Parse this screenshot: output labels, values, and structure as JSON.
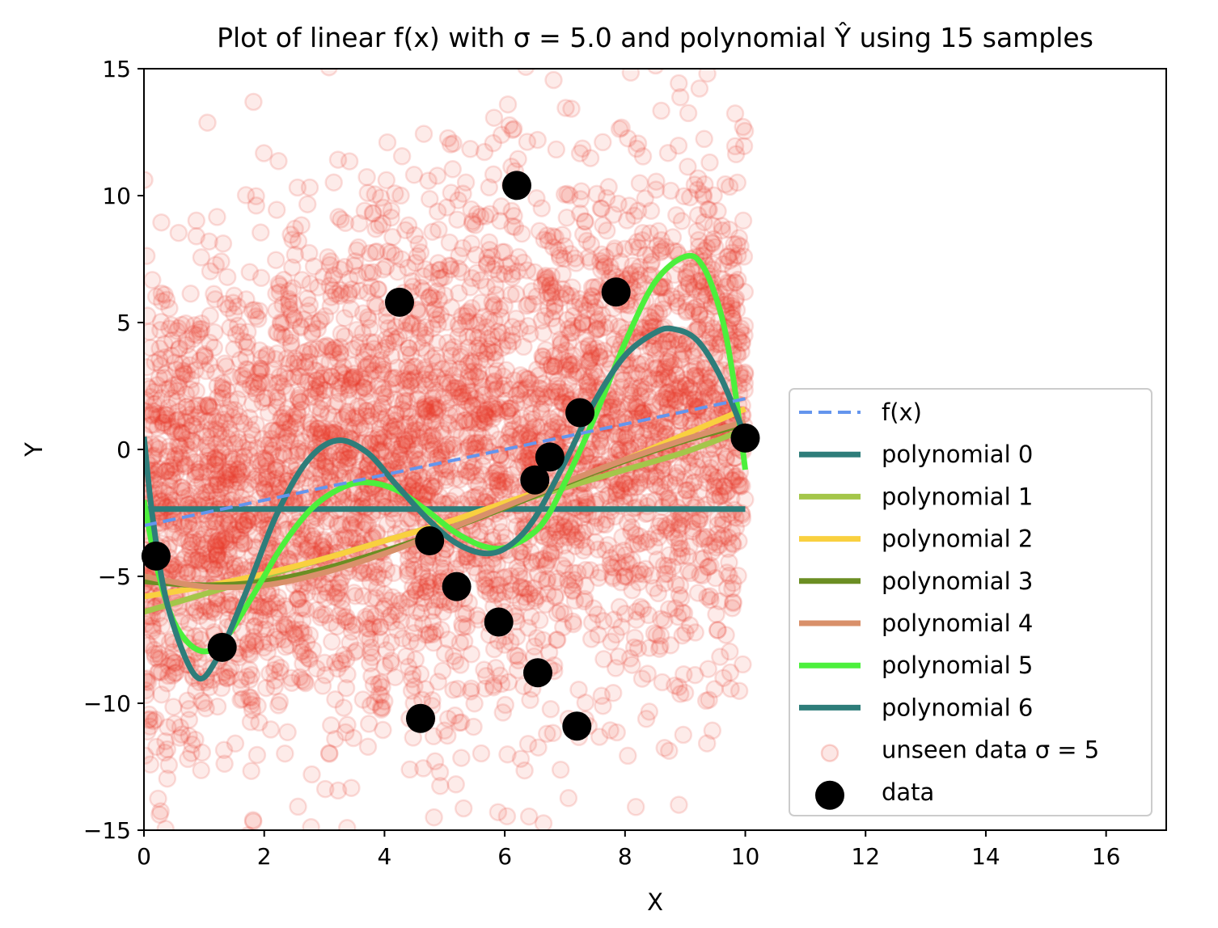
{
  "chart_data": {
    "type": "scatter",
    "title": "Plot of linear f(x) with σ = 5.0 and polynomial Ŷ using 15 samples",
    "xlabel": "X",
    "ylabel": "Y",
    "xlim": [
      0,
      17
    ],
    "ylim": [
      -15,
      15
    ],
    "x_ticks": [
      "0",
      "2",
      "4",
      "6",
      "8",
      "10",
      "12",
      "14",
      "16"
    ],
    "x_tick_values": [
      0,
      2,
      4,
      6,
      8,
      10,
      12,
      14,
      16
    ],
    "y_ticks": [
      "−15",
      "−10",
      "−5",
      "0",
      "5",
      "10",
      "15"
    ],
    "y_tick_values": [
      -15,
      -10,
      -5,
      0,
      5,
      10,
      15
    ],
    "grid": false,
    "legend_position": "lower-right",
    "series": [
      {
        "name": "f(x)",
        "kind": "line",
        "style": "dashed",
        "color": "#6495ed",
        "points": [
          [
            0,
            -3
          ],
          [
            10,
            2
          ]
        ]
      },
      {
        "name": "polynomial 0",
        "kind": "line",
        "color": "#2e7d7a",
        "points": [
          [
            0,
            -2.35
          ],
          [
            10,
            -2.35
          ]
        ]
      },
      {
        "name": "polynomial 1",
        "kind": "line",
        "color": "#a4c64a",
        "points": [
          [
            0,
            -6.4
          ],
          [
            1,
            -5.7
          ],
          [
            2,
            -5.0
          ],
          [
            3,
            -4.3
          ],
          [
            4,
            -3.6
          ],
          [
            5,
            -2.9
          ],
          [
            6,
            -2.2
          ],
          [
            7,
            -1.5
          ],
          [
            8,
            -0.8
          ],
          [
            9,
            -0.1
          ],
          [
            10,
            0.8
          ]
        ]
      },
      {
        "name": "polynomial 2",
        "kind": "line",
        "color": "#f9d03f",
        "points": [
          [
            0,
            -5.8
          ],
          [
            1,
            -5.4
          ],
          [
            2,
            -4.9
          ],
          [
            3,
            -4.3
          ],
          [
            4,
            -3.6
          ],
          [
            5,
            -2.9
          ],
          [
            6,
            -2.1
          ],
          [
            7,
            -1.3
          ],
          [
            8,
            -0.4
          ],
          [
            9,
            0.6
          ],
          [
            10,
            1.6
          ]
        ]
      },
      {
        "name": "polynomial 3",
        "kind": "line",
        "color": "#6b8e23",
        "points": [
          [
            0,
            -5.2
          ],
          [
            1,
            -5.35
          ],
          [
            2,
            -5.2
          ],
          [
            3,
            -4.7
          ],
          [
            4,
            -4.0
          ],
          [
            5,
            -3.2
          ],
          [
            6,
            -2.3
          ],
          [
            7,
            -1.35
          ],
          [
            8,
            -0.45
          ],
          [
            9,
            0.35
          ],
          [
            10,
            1.0
          ]
        ]
      },
      {
        "name": "polynomial 4",
        "kind": "line",
        "color": "#d9906a",
        "points": [
          [
            0,
            -5.0
          ],
          [
            1,
            -5.4
          ],
          [
            2,
            -5.35
          ],
          [
            3,
            -4.85
          ],
          [
            4,
            -4.1
          ],
          [
            5,
            -3.2
          ],
          [
            6,
            -2.25
          ],
          [
            7,
            -1.3
          ],
          [
            8,
            -0.4
          ],
          [
            9,
            0.4
          ],
          [
            10,
            1.1
          ]
        ]
      },
      {
        "name": "polynomial 5",
        "kind": "line",
        "color": "#4cf03c",
        "points": [
          [
            0,
            -2.0
          ],
          [
            0.2,
            -4.5
          ],
          [
            0.5,
            -6.8
          ],
          [
            0.9,
            -7.9
          ],
          [
            1.3,
            -7.6
          ],
          [
            1.8,
            -5.8
          ],
          [
            2.3,
            -3.8
          ],
          [
            2.8,
            -2.3
          ],
          [
            3.3,
            -1.5
          ],
          [
            3.7,
            -1.3
          ],
          [
            4.2,
            -1.6
          ],
          [
            4.7,
            -2.4
          ],
          [
            5.2,
            -3.3
          ],
          [
            5.7,
            -3.85
          ],
          [
            6.1,
            -3.8
          ],
          [
            6.6,
            -3.0
          ],
          [
            7.0,
            -1.3
          ],
          [
            7.5,
            1.3
          ],
          [
            8.0,
            4.2
          ],
          [
            8.5,
            6.6
          ],
          [
            9.0,
            7.6
          ],
          [
            9.3,
            7.2
          ],
          [
            9.6,
            5.3
          ],
          [
            9.8,
            2.8
          ],
          [
            10.0,
            -0.8
          ]
        ]
      },
      {
        "name": "polynomial 6",
        "kind": "line",
        "color": "#2e7d7a",
        "points": [
          [
            0,
            0.5
          ],
          [
            0.15,
            -2.8
          ],
          [
            0.4,
            -6.2
          ],
          [
            0.85,
            -8.9
          ],
          [
            1.2,
            -8.3
          ],
          [
            1.7,
            -5.6
          ],
          [
            2.2,
            -2.6
          ],
          [
            2.7,
            -0.5
          ],
          [
            3.2,
            0.35
          ],
          [
            3.7,
            -0.1
          ],
          [
            4.2,
            -1.4
          ],
          [
            4.7,
            -2.7
          ],
          [
            5.2,
            -3.7
          ],
          [
            5.7,
            -4.1
          ],
          [
            6.1,
            -3.75
          ],
          [
            6.5,
            -2.7
          ],
          [
            7.0,
            -0.5
          ],
          [
            7.5,
            1.9
          ],
          [
            8.0,
            3.7
          ],
          [
            8.5,
            4.6
          ],
          [
            8.8,
            4.75
          ],
          [
            9.2,
            4.3
          ],
          [
            9.6,
            2.8
          ],
          [
            10.0,
            0.5
          ]
        ]
      },
      {
        "name": "unseen data σ = 5",
        "kind": "scatter",
        "color": "#e8392a",
        "count": 4500,
        "x_range": [
          0,
          10
        ],
        "trend": [
          [
            0,
            -3
          ],
          [
            10,
            2
          ]
        ],
        "noise_sigma": 5
      },
      {
        "name": "data",
        "kind": "scatter",
        "color": "#000000",
        "points": [
          [
            0.2,
            -4.2
          ],
          [
            1.3,
            -7.8
          ],
          [
            4.25,
            5.8
          ],
          [
            4.6,
            -10.6
          ],
          [
            4.75,
            -3.6
          ],
          [
            5.2,
            -5.4
          ],
          [
            5.9,
            -6.8
          ],
          [
            6.2,
            10.4
          ],
          [
            6.5,
            -1.2
          ],
          [
            6.55,
            -8.8
          ],
          [
            6.75,
            -0.3
          ],
          [
            7.2,
            -10.9
          ],
          [
            7.25,
            1.45
          ],
          [
            7.85,
            6.2
          ],
          [
            10.0,
            0.45
          ]
        ]
      }
    ]
  }
}
